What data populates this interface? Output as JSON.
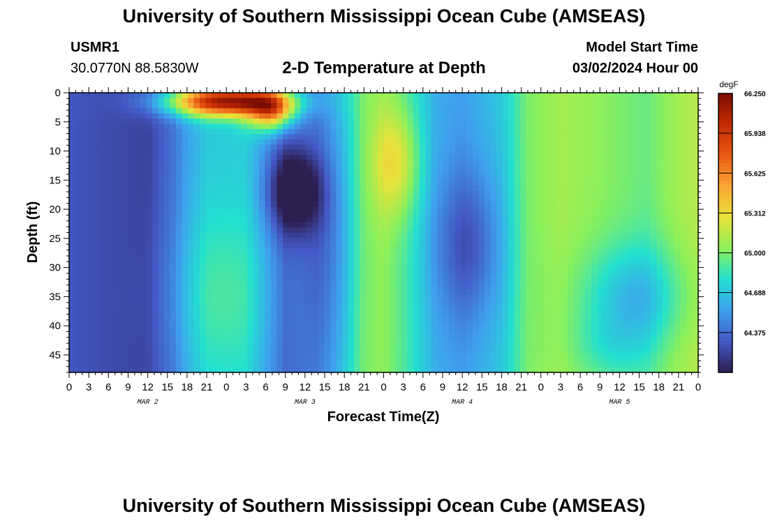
{
  "header": {
    "title": "University of Southern Mississippi Ocean Cube (AMSEAS)",
    "station_id": "USMR1",
    "station_coords": "30.0770N  88.5830W",
    "plot_title": "2-D Temperature at Depth",
    "model_start_label": "Model Start Time",
    "model_start_value": "03/02/2024 Hour 00"
  },
  "footer": {
    "title": "University of Southern Mississippi Ocean Cube (AMSEAS)"
  },
  "chart_data": {
    "type": "heatmap",
    "xlabel": "Forecast Time(Z)",
    "ylabel": "Depth (ft)",
    "x_unit": "hours since model start",
    "x_range": [
      0,
      96
    ],
    "x_tick_labels": [
      "0",
      "3",
      "6",
      "9",
      "12",
      "15",
      "18",
      "21",
      "0",
      "3",
      "6",
      "9",
      "12",
      "15",
      "18",
      "21",
      "0",
      "3",
      "6",
      "9",
      "12",
      "15",
      "18",
      "21",
      "0",
      "3",
      "6",
      "9",
      "12",
      "15",
      "18",
      "21",
      "0"
    ],
    "day_labels": [
      {
        "label": "MAR 2",
        "hour": 12
      },
      {
        "label": "MAR 3",
        "hour": 36
      },
      {
        "label": "MAR 4",
        "hour": 60
      },
      {
        "label": "MAR 5",
        "hour": 84
      }
    ],
    "y_range": [
      0,
      48
    ],
    "y_reversed": true,
    "y_tick_labels": [
      "0",
      "5",
      "10",
      "15",
      "20",
      "25",
      "30",
      "35",
      "40",
      "45"
    ],
    "colorbar": {
      "unit": "degF",
      "min": 64.0625,
      "max": 66.25,
      "tick_labels": [
        "66.250",
        "65.938",
        "65.625",
        "65.312",
        "65.000",
        "64.688",
        "64.375"
      ],
      "colors": [
        "#2d1e50",
        "#4358c6",
        "#3f9ff0",
        "#22e0d0",
        "#8bf05a",
        "#e9e23a",
        "#fba634",
        "#e85a12",
        "#c42c04",
        "#7a0c02"
      ]
    },
    "temperature_anomaly_field": {
      "description_unit": "degF",
      "base_by_hour": [
        [
          0,
          64.3
        ],
        [
          6,
          64.25
        ],
        [
          12,
          64.22
        ],
        [
          16,
          64.4
        ],
        [
          18,
          64.55
        ],
        [
          21,
          64.7
        ],
        [
          27,
          64.72
        ],
        [
          33,
          64.35
        ],
        [
          38,
          64.45
        ],
        [
          41,
          64.65
        ],
        [
          45,
          65.0
        ],
        [
          48,
          65.05
        ],
        [
          51,
          64.9
        ],
        [
          56,
          64.6
        ],
        [
          60,
          64.55
        ],
        [
          66,
          64.7
        ],
        [
          70,
          65.0
        ],
        [
          75,
          65.1
        ],
        [
          80,
          65.05
        ],
        [
          84,
          65.0
        ],
        [
          88,
          64.95
        ],
        [
          93,
          65.1
        ],
        [
          96,
          65.15
        ]
      ],
      "features": [
        {
          "hour": 23,
          "depth": 35,
          "dt": 8,
          "dd": 15,
          "delta": 0.18
        },
        {
          "hour": 24,
          "depth": 1.5,
          "dt": 9,
          "dd": 2.5,
          "delta": 1.45
        },
        {
          "hour": 31,
          "depth": 3,
          "dt": 3.5,
          "dd": 3.5,
          "delta": 1.0
        },
        {
          "hour": 34.5,
          "depth": 17,
          "dt": 4,
          "dd": 7,
          "delta": -0.55
        },
        {
          "hour": 40,
          "depth": 26,
          "dt": 4,
          "dd": 20,
          "delta": -0.15
        },
        {
          "hour": 50,
          "depth": 12,
          "dt": 3.5,
          "dd": 9,
          "delta": 0.35
        },
        {
          "hour": 61,
          "depth": 26,
          "dt": 5,
          "dd": 13,
          "delta": -0.3
        },
        {
          "hour": 86,
          "depth": 35,
          "dt": 8,
          "dd": 9,
          "delta": -0.35
        },
        {
          "hour": 82,
          "depth": 44,
          "dt": 6,
          "dd": 6,
          "delta": -0.15
        }
      ]
    }
  }
}
